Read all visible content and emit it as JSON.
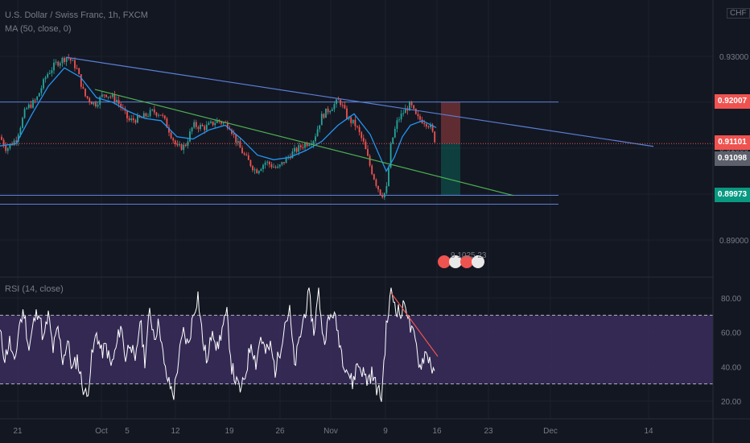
{
  "header": {
    "symbol": "U.S. Dollar / Swiss Franc, 1h, FXCM",
    "ma_indicator": "MA (50, close, 0)",
    "rsi_indicator": "RSI (14, close)",
    "currency": "CHF"
  },
  "price_labels": [
    {
      "text": "0.92007",
      "bg": "#ef5350"
    },
    {
      "text": "0.91101",
      "bg": "#ef5350"
    },
    {
      "text": "0.91098",
      "bg": "#5d606b"
    },
    {
      "text": "0.89973",
      "bg": "#089981"
    }
  ],
  "events_label": "9 1025  23",
  "colors": {
    "background": "#131722",
    "grid": "#1e222d",
    "candle_up": "#26a69a",
    "candle_down": "#ef5350",
    "ma": "#2196f3",
    "trendline_blue": "#5b7fd6",
    "trendline_green": "#4caf50",
    "hline": "#5b7fd6",
    "rsi_line": "#ffffff",
    "rsi_band": "#3a2d5c",
    "rsi_trend": "#ef5350"
  },
  "chart_data": [
    {
      "type": "candlestick",
      "title": "U.S. Dollar / Swiss Franc, 1h, FXCM",
      "y_ticks": [
        "0.93000",
        "0.92000",
        "0.91000",
        "0.90000",
        "0.89000"
      ],
      "ylim": [
        0.8865,
        0.9355
      ],
      "x_ticks": [
        "21",
        "Oct",
        "5",
        "12",
        "19",
        "26",
        "Nov",
        "9",
        "16",
        "23",
        "Dec",
        "14"
      ],
      "close_path": [
        [
          0,
          0.9125
        ],
        [
          8,
          0.9098
        ],
        [
          20,
          0.912
        ],
        [
          32,
          0.9185
        ],
        [
          45,
          0.9205
        ],
        [
          58,
          0.926
        ],
        [
          70,
          0.9285
        ],
        [
          84,
          0.93
        ],
        [
          95,
          0.9275
        ],
        [
          105,
          0.9215
        ],
        [
          118,
          0.9195
        ],
        [
          130,
          0.922
        ],
        [
          145,
          0.9205
        ],
        [
          160,
          0.916
        ],
        [
          175,
          0.9165
        ],
        [
          190,
          0.918
        ],
        [
          200,
          0.9175
        ],
        [
          210,
          0.914
        ],
        [
          220,
          0.91
        ],
        [
          230,
          0.9105
        ],
        [
          240,
          0.915
        ],
        [
          255,
          0.9145
        ],
        [
          270,
          0.916
        ],
        [
          285,
          0.915
        ],
        [
          295,
          0.911
        ],
        [
          305,
          0.908
        ],
        [
          318,
          0.905
        ],
        [
          330,
          0.907
        ],
        [
          345,
          0.9055
        ],
        [
          360,
          0.9085
        ],
        [
          375,
          0.9105
        ],
        [
          390,
          0.912
        ],
        [
          400,
          0.917
        ],
        [
          412,
          0.919
        ],
        [
          422,
          0.9205
        ],
        [
          432,
          0.9165
        ],
        [
          442,
          0.915
        ],
        [
          452,
          0.911
        ],
        [
          460,
          0.906
        ],
        [
          468,
          0.902
        ],
        [
          474,
          0.8998
        ],
        [
          480,
          0.9005
        ],
        [
          486,
          0.911
        ],
        [
          494,
          0.916
        ],
        [
          502,
          0.918
        ],
        [
          510,
          0.9195
        ],
        [
          518,
          0.9165
        ],
        [
          526,
          0.916
        ],
        [
          534,
          0.915
        ],
        [
          542,
          0.911
        ]
      ],
      "ma_path": [
        [
          0,
          0.9105
        ],
        [
          20,
          0.911
        ],
        [
          40,
          0.9175
        ],
        [
          60,
          0.9235
        ],
        [
          80,
          0.9275
        ],
        [
          100,
          0.9255
        ],
        [
          120,
          0.921
        ],
        [
          140,
          0.92
        ],
        [
          160,
          0.918
        ],
        [
          180,
          0.9165
        ],
        [
          200,
          0.916
        ],
        [
          220,
          0.9125
        ],
        [
          240,
          0.912
        ],
        [
          260,
          0.914
        ],
        [
          280,
          0.915
        ],
        [
          300,
          0.912
        ],
        [
          320,
          0.9085
        ],
        [
          340,
          0.9075
        ],
        [
          360,
          0.908
        ],
        [
          380,
          0.9095
        ],
        [
          400,
          0.9115
        ],
        [
          420,
          0.915
        ],
        [
          440,
          0.9175
        ],
        [
          460,
          0.913
        ],
        [
          480,
          0.905
        ],
        [
          490,
          0.908
        ],
        [
          500,
          0.9125
        ],
        [
          510,
          0.915
        ],
        [
          525,
          0.916
        ],
        [
          542,
          0.9145
        ]
      ],
      "horizontal_lines": [
        0.92007,
        0.89973,
        0.8978
      ],
      "trendlines": [
        {
          "color": "blue",
          "from": [
            82,
            0.9298
          ],
          "to": [
            812,
            0.9104
          ]
        },
        {
          "color": "green",
          "from": [
            118,
            0.9228
          ],
          "to": [
            638,
            0.8997
          ]
        }
      ],
      "position_tool": {
        "x_start": 548,
        "x_end": 572,
        "stop": 0.92007,
        "entry": 0.91101,
        "target": 0.89973
      }
    },
    {
      "type": "line",
      "title": "RSI (14, close)",
      "y_ticks": [
        "80.00",
        "60.00",
        "40.00",
        "20.00"
      ],
      "ylim": [
        12,
        88
      ],
      "bands": [
        30,
        70
      ],
      "rsi_path": [
        [
          0,
          60
        ],
        [
          6,
          45
        ],
        [
          12,
          55
        ],
        [
          18,
          40
        ],
        [
          24,
          65
        ],
        [
          30,
          72
        ],
        [
          36,
          50
        ],
        [
          42,
          66
        ],
        [
          48,
          74
        ],
        [
          54,
          55
        ],
        [
          60,
          70
        ],
        [
          66,
          50
        ],
        [
          72,
          62
        ],
        [
          78,
          44
        ],
        [
          84,
          55
        ],
        [
          90,
          38
        ],
        [
          96,
          45
        ],
        [
          102,
          30
        ],
        [
          108,
          22
        ],
        [
          114,
          45
        ],
        [
          120,
          60
        ],
        [
          126,
          48
        ],
        [
          132,
          52
        ],
        [
          138,
          40
        ],
        [
          144,
          50
        ],
        [
          150,
          65
        ],
        [
          156,
          45
        ],
        [
          162,
          56
        ],
        [
          168,
          40
        ],
        [
          174,
          68
        ],
        [
          180,
          44
        ],
        [
          186,
          72
        ],
        [
          192,
          58
        ],
        [
          198,
          66
        ],
        [
          204,
          40
        ],
        [
          210,
          30
        ],
        [
          216,
          24
        ],
        [
          222,
          45
        ],
        [
          228,
          60
        ],
        [
          234,
          52
        ],
        [
          240,
          70
        ],
        [
          246,
          82
        ],
        [
          252,
          55
        ],
        [
          258,
          42
        ],
        [
          264,
          64
        ],
        [
          270,
          50
        ],
        [
          276,
          62
        ],
        [
          282,
          70
        ],
        [
          288,
          40
        ],
        [
          294,
          30
        ],
        [
          300,
          26
        ],
        [
          306,
          38
        ],
        [
          312,
          55
        ],
        [
          318,
          42
        ],
        [
          324,
          58
        ],
        [
          330,
          48
        ],
        [
          336,
          52
        ],
        [
          342,
          38
        ],
        [
          348,
          50
        ],
        [
          354,
          66
        ],
        [
          360,
          72
        ],
        [
          366,
          40
        ],
        [
          372,
          55
        ],
        [
          378,
          70
        ],
        [
          384,
          82
        ],
        [
          390,
          60
        ],
        [
          396,
          84
        ],
        [
          402,
          55
        ],
        [
          408,
          66
        ],
        [
          414,
          72
        ],
        [
          420,
          60
        ],
        [
          426,
          45
        ],
        [
          432,
          38
        ],
        [
          438,
          30
        ],
        [
          444,
          42
        ],
        [
          450,
          38
        ],
        [
          456,
          32
        ],
        [
          462,
          36
        ],
        [
          468,
          28
        ],
        [
          474,
          22
        ],
        [
          480,
          62
        ],
        [
          486,
          84
        ],
        [
          492,
          75
        ],
        [
          498,
          70
        ],
        [
          504,
          78
        ],
        [
          510,
          62
        ],
        [
          516,
          55
        ],
        [
          522,
          40
        ],
        [
          528,
          48
        ],
        [
          534,
          45
        ],
        [
          540,
          33
        ]
      ],
      "trendline": {
        "from": [
          486,
          83
        ],
        "to": [
          544,
          46
        ]
      }
    }
  ]
}
